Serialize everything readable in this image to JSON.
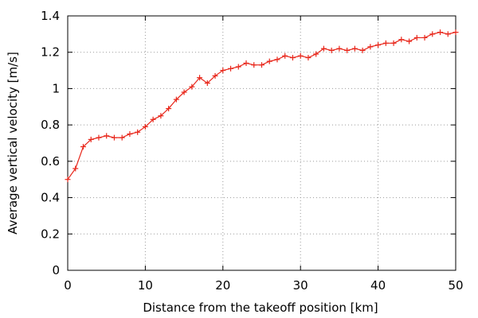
{
  "chart_data": {
    "type": "line",
    "title": "",
    "xlabel": "Distance from the takeoff position [km]",
    "ylabel": "Average vertical velocity [m/s]",
    "xlim": [
      0,
      50
    ],
    "ylim": [
      0,
      1.4
    ],
    "xticks": [
      0,
      10,
      20,
      30,
      40,
      50
    ],
    "xtick_labels": [
      "0",
      "10",
      "20",
      "30",
      "40",
      "50"
    ],
    "yticks": [
      0,
      0.2,
      0.4,
      0.6,
      0.8,
      1.0,
      1.2,
      1.4
    ],
    "ytick_labels": [
      "0",
      "0.2",
      "0.4",
      "0.6",
      "0.8",
      "1",
      "1.2",
      "1.4"
    ],
    "grid": true,
    "legend": false,
    "marker": "plus",
    "color": "#e8261a",
    "series": [
      {
        "x": [
          0,
          1,
          2,
          3,
          4,
          5,
          6,
          7,
          8,
          9,
          10,
          11,
          12,
          13,
          14,
          15,
          16,
          17,
          18,
          19,
          20,
          21,
          22,
          23,
          24,
          25,
          26,
          27,
          28,
          29,
          30,
          31,
          32,
          33,
          34,
          35,
          36,
          37,
          38,
          39,
          40,
          41,
          42,
          43,
          44,
          45,
          46,
          47,
          48,
          49,
          50
        ],
        "y": [
          0.5,
          0.56,
          0.68,
          0.72,
          0.73,
          0.74,
          0.73,
          0.73,
          0.75,
          0.76,
          0.79,
          0.83,
          0.85,
          0.89,
          0.94,
          0.98,
          1.01,
          1.06,
          1.03,
          1.07,
          1.1,
          1.11,
          1.12,
          1.14,
          1.13,
          1.13,
          1.15,
          1.16,
          1.18,
          1.17,
          1.18,
          1.17,
          1.19,
          1.22,
          1.21,
          1.22,
          1.21,
          1.22,
          1.21,
          1.23,
          1.24,
          1.25,
          1.25,
          1.27,
          1.26,
          1.28,
          1.28,
          1.3,
          1.31,
          1.3,
          1.31
        ]
      }
    ]
  }
}
